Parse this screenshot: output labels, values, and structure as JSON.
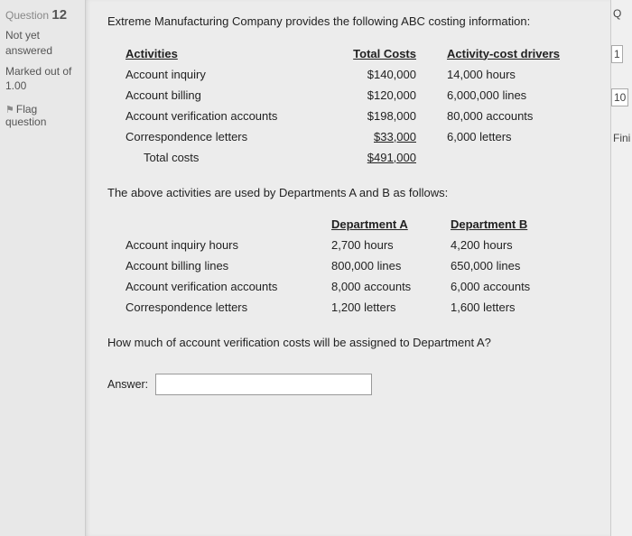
{
  "leftPanel": {
    "questionLabel": "Question",
    "questionNumber": "12",
    "statusLine1": "Not yet",
    "statusLine2": "answered",
    "markedLine1": "Marked out of",
    "markedLine2": "1.00",
    "flagText": "Flag",
    "flagText2": "question"
  },
  "intro": "Extreme Manufacturing Company provides the following ABC costing information:",
  "activitiesTable": {
    "headers": [
      "Activities",
      "Total Costs",
      "Activity-cost drivers"
    ],
    "rows": [
      [
        "Account inquiry",
        "$140,000",
        "14,000 hours"
      ],
      [
        "Account billing",
        "$120,000",
        "6,000,000 lines"
      ],
      [
        "Account verification accounts",
        "$198,000",
        "80,000 accounts"
      ],
      [
        "Correspondence letters",
        "$33,000",
        "6,000 letters"
      ]
    ],
    "totalLabel": "Total costs",
    "totalValue": "$491,000"
  },
  "midText": "The above activities are used by Departments A and B as follows:",
  "deptTable": {
    "headers": [
      "",
      "Department A",
      "Department B"
    ],
    "rows": [
      [
        "Account inquiry hours",
        "2,700 hours",
        "4,200 hours"
      ],
      [
        "Account billing lines",
        "800,000 lines",
        "650,000 lines"
      ],
      [
        "Account verification accounts",
        "8,000 accounts",
        "6,000 accounts"
      ],
      [
        "Correspondence letters",
        "1,200 letters",
        "1,600 letters"
      ]
    ]
  },
  "questionText": "How much of account verification costs will be assigned to Department A?",
  "answerLabel": "Answer:",
  "answerValue": "",
  "rightSliver": {
    "l1": "Q",
    "l2": "1",
    "l3": "10",
    "l4": "Fini"
  }
}
